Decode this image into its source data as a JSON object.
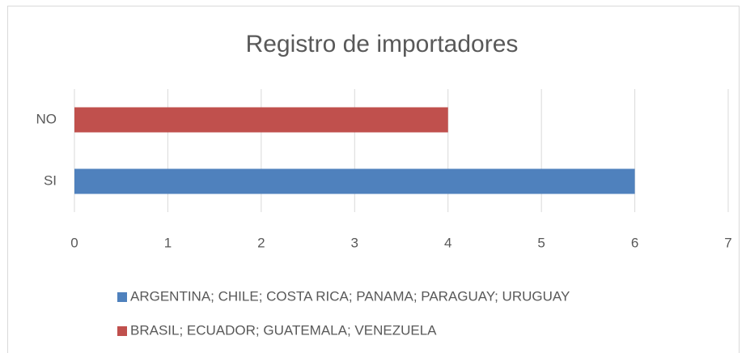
{
  "chart_data": {
    "type": "bar",
    "orientation": "horizontal",
    "title": "Registro de importadores",
    "categories": [
      "SI",
      "NO"
    ],
    "series": [
      {
        "name": "ARGENTINA; CHILE; COSTA RICA; PANAMA; PARAGUAY; URUGUAY",
        "color": "#4f81bd",
        "values": [
          6,
          null
        ]
      },
      {
        "name": "BRASIL; ECUADOR; GUATEMALA; VENEZUELA",
        "color": "#c0504d",
        "values": [
          null,
          4
        ]
      }
    ],
    "xlim": [
      0,
      7
    ],
    "xticks": [
      0,
      1,
      2,
      3,
      4,
      5,
      6,
      7
    ],
    "grid": true,
    "legend": "bottom"
  }
}
